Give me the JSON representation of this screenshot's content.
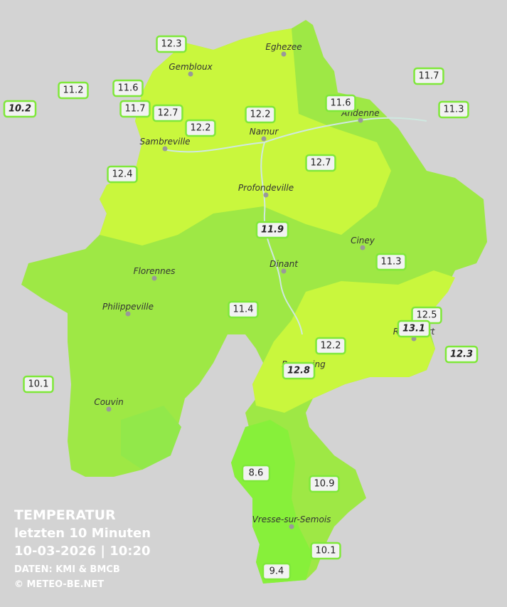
{
  "legend": {
    "title": "TEMPERATUR",
    "period": "letzten 10 Minuten",
    "datetime": "10-03-2026  |  10:20",
    "source": "DATEN: KMI & BMCB",
    "copyright": "© METEO-BE.NET"
  },
  "cities": [
    "Eghezee",
    "Gembloux",
    "Andenne",
    "Namur",
    "Sambreville",
    "Profondeville",
    "Ciney",
    "Dinant",
    "Florennes",
    "Philippeville",
    "Rochefort",
    "Beauraing",
    "Couvin",
    "Vresse-sur-Semois"
  ],
  "stations": [
    "12.3",
    "11.2",
    "10.2",
    "11.6",
    "11.7",
    "12.7",
    "12.2",
    "12.2",
    "11.6",
    "11.7",
    "11.3",
    "12.7",
    "12.4",
    "11.9",
    "11.3",
    "11.4",
    "12.5",
    "13.1",
    "12.3",
    "12.2",
    "12.8",
    "10.1",
    "8.6",
    "10.9",
    "10.1",
    "9.4"
  ]
}
